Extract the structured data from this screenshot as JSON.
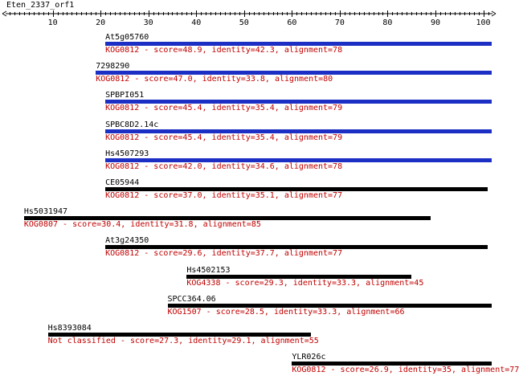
{
  "sequence_title": "Eten_2337_orf1",
  "axis": {
    "min": 1,
    "max": 101,
    "ticks": [
      10,
      20,
      30,
      40,
      50,
      60,
      70,
      80,
      90,
      100
    ]
  },
  "colors": {
    "blue_bar": "#1c2fc4",
    "black_bar": "#000000",
    "desc_text": "#c00000",
    "name_text": "#000000"
  },
  "hits": [
    {
      "name": "At5g05760",
      "start": 21,
      "end": 102,
      "color": "blue",
      "description": "KOG0812 - score=48.9, identity=42.3, alignment=78"
    },
    {
      "name": "7298290",
      "start": 19,
      "end": 102,
      "color": "blue",
      "description": "KOG0812 - score=47.0, identity=33.8, alignment=80"
    },
    {
      "name": "SPBPI051",
      "start": 21,
      "end": 102,
      "color": "blue",
      "description": "KOG0812 - score=45.4, identity=35.4, alignment=79"
    },
    {
      "name": "SPBC8D2.14c",
      "start": 21,
      "end": 102,
      "color": "blue",
      "description": "KOG0812 - score=45.4, identity=35.4, alignment=79"
    },
    {
      "name": "Hs4507293",
      "start": 21,
      "end": 102,
      "color": "blue",
      "description": "KOG0812 - score=42.0, identity=34.6, alignment=78"
    },
    {
      "name": "CE05944",
      "start": 21,
      "end": 101,
      "color": "black",
      "description": "KOG0812 - score=37.0, identity=35.1, alignment=77"
    },
    {
      "name": "Hs5031947",
      "start": 4,
      "end": 89,
      "color": "black",
      "description": "KOG0807 - score=30.4, identity=31.8, alignment=85"
    },
    {
      "name": "At3g24350",
      "start": 21,
      "end": 101,
      "color": "black",
      "description": "KOG0812 - score=29.6, identity=37.7, alignment=77"
    },
    {
      "name": "Hs4502153",
      "start": 38,
      "end": 85,
      "color": "black",
      "description": "KOG4338 - score=29.3, identity=33.3, alignment=45"
    },
    {
      "name": "SPCC364.06",
      "start": 34,
      "end": 102,
      "color": "black",
      "description": "KOG1507 - score=28.5, identity=33.3, alignment=66"
    },
    {
      "name": "Hs8393084",
      "start": 9,
      "end": 64,
      "color": "black",
      "description": "Not classified - score=27.3, identity=29.1, alignment=55"
    },
    {
      "name": "YLR026c",
      "start": 60,
      "end": 102,
      "color": "black",
      "description": "KOG0812 - score=26.9, identity=35, alignment=77"
    }
  ]
}
